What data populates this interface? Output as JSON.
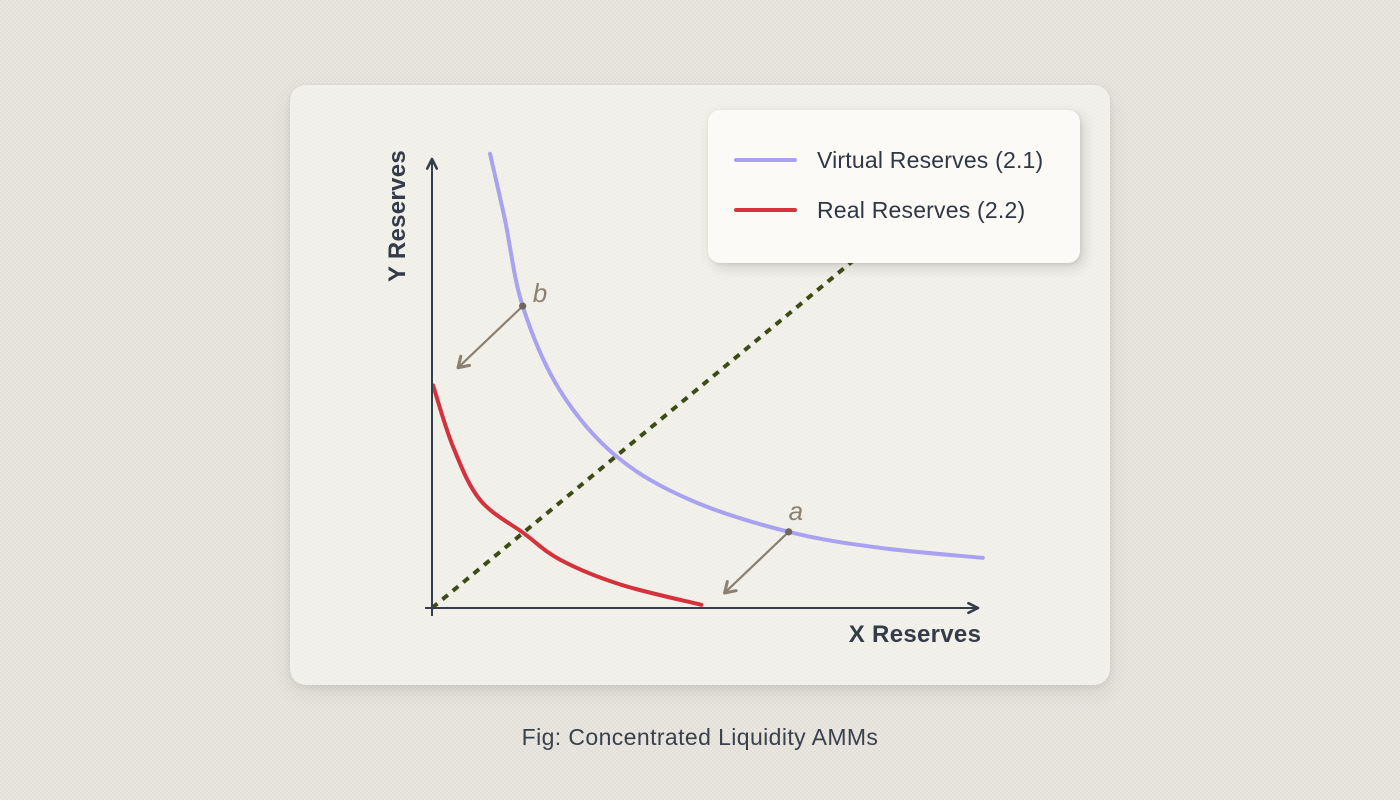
{
  "figure": {
    "caption": "Fig: Concentrated Liquidity AMMs"
  },
  "legend": {
    "items": [
      {
        "label": "Virtual Reserves (2.1)",
        "color": "#a9a2f0"
      },
      {
        "label": "Real Reserves (2.2)",
        "color": "#d4333e"
      }
    ]
  },
  "chart_data": {
    "type": "line",
    "title": "",
    "xlabel": "X Reserves",
    "ylabel": "Y Reserves",
    "xlim": [
      0,
      100
    ],
    "ylim": [
      0,
      100
    ],
    "grid": false,
    "axes": {
      "color": "#353d4a",
      "ticks": "none"
    },
    "legend_position": "top-right",
    "series": [
      {
        "name": "Virtual Reserves (2.1)",
        "color": "#a9a2f0",
        "style": "solid",
        "width": 4,
        "points": [
          [
            10.5,
            99.6
          ],
          [
            13.2,
            85.1
          ],
          [
            16.4,
            66.2
          ],
          [
            23.1,
            47.8
          ],
          [
            33.3,
            33.3
          ],
          [
            46.7,
            23.7
          ],
          [
            64.5,
            16.7
          ],
          [
            81.0,
            13.2
          ],
          [
            99.6,
            11.0
          ]
        ]
      },
      {
        "name": "Real Reserves (2.2)",
        "color": "#d4333e",
        "style": "solid",
        "width": 4,
        "points": [
          [
            0.2,
            48.8
          ],
          [
            3.8,
            35.4
          ],
          [
            8.7,
            23.7
          ],
          [
            16.7,
            16.3
          ],
          [
            23.3,
            10.5
          ],
          [
            34.2,
            5.1
          ],
          [
            48.7,
            0.7
          ]
        ]
      },
      {
        "name": "price-ray",
        "color": "#3d4b15",
        "style": "dashed",
        "width": 4,
        "points": [
          [
            0,
            0
          ],
          [
            76,
            76
          ]
        ]
      }
    ],
    "annotations": [
      {
        "label": "a",
        "point": [
          64.5,
          16.7
        ],
        "arrow_to": [
          52.9,
          3.3
        ],
        "label_offset": [
          0,
          -12
        ]
      },
      {
        "label": "b",
        "point": [
          16.4,
          66.2
        ],
        "arrow_to": [
          4.7,
          52.7
        ],
        "label_offset": [
          10,
          -4
        ]
      }
    ],
    "annotation_style": {
      "arrow_color": "#8b8071",
      "dot_color": "#6e665d",
      "label_color": "#8a8173"
    }
  }
}
